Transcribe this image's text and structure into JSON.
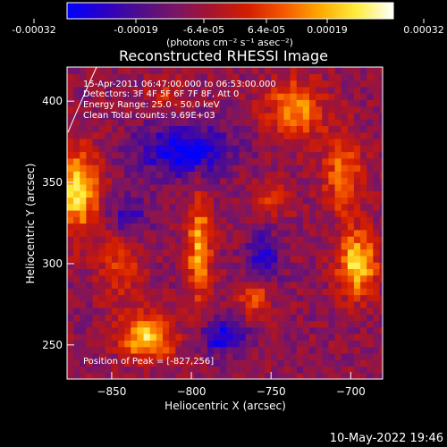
{
  "colorbar": {
    "ticks": [
      "-0.00032",
      "-0.00019",
      "-6.4e-05",
      "6.4e-05",
      "0.00019",
      "0.00032"
    ],
    "unit_label": "(photons cm⁻² s⁻¹ asec⁻²)",
    "colors": [
      "#0000ff",
      "#2a00c8",
      "#4f0d8c",
      "#7a1566",
      "#a8142b",
      "#d41e00",
      "#f55a00",
      "#ffaa00",
      "#ffee40",
      "#ffffff"
    ]
  },
  "chart_data": {
    "type": "heatmap",
    "title": "Reconstructed RHESSI Image",
    "xlabel": "Heliocentric X (arcsec)",
    "ylabel": "Heliocentric Y (arcsec)",
    "xlim": [
      -878,
      -680
    ],
    "ylim": [
      229,
      421
    ],
    "xticks": [
      -850,
      -800,
      -750,
      -700
    ],
    "yticks": [
      250,
      300,
      350,
      400
    ],
    "value_range": [
      -0.00032,
      0.00032
    ],
    "annotations": [
      "15-Apr-2011 06:47:00.000 to 06:53:00.000",
      "Detectors: 3F 4F 5F 6F 7F 8F, Att 0",
      "Energy Range: 25.0 - 50.0 keV",
      "Clean     Total counts: 9.69E+03"
    ],
    "peak_label": "Position of Peak = [-827,256]",
    "sources": [
      {
        "x": -872,
        "y": 345,
        "rx": 14,
        "ry": 26,
        "value": 0.00032
      },
      {
        "x": -828,
        "y": 255,
        "rx": 16,
        "ry": 14,
        "value": 0.00032
      },
      {
        "x": -795,
        "y": 310,
        "rx": 8,
        "ry": 32,
        "value": 0.00026
      },
      {
        "x": -696,
        "y": 300,
        "rx": 12,
        "ry": 20,
        "value": 0.00032
      },
      {
        "x": -735,
        "y": 395,
        "rx": 18,
        "ry": 18,
        "value": 0.00024
      },
      {
        "x": -705,
        "y": 355,
        "rx": 12,
        "ry": 24,
        "value": 0.0002
      },
      {
        "x": -760,
        "y": 280,
        "rx": 10,
        "ry": 12,
        "value": 0.00017
      },
      {
        "x": -845,
        "y": 300,
        "rx": 14,
        "ry": 22,
        "value": 0.00014
      },
      {
        "x": -750,
        "y": 340,
        "rx": 12,
        "ry": 12,
        "value": 0.00012
      },
      {
        "x": -815,
        "y": 405,
        "rx": 12,
        "ry": 14,
        "value": 0.0001
      },
      {
        "x": -805,
        "y": 370,
        "rx": 28,
        "ry": 16,
        "value": -0.00024
      },
      {
        "x": -780,
        "y": 255,
        "rx": 14,
        "ry": 10,
        "value": -0.00022
      },
      {
        "x": -755,
        "y": 305,
        "rx": 10,
        "ry": 16,
        "value": -0.00018
      },
      {
        "x": -840,
        "y": 330,
        "rx": 14,
        "ry": 14,
        "value": -0.00014
      }
    ]
  },
  "footer": {
    "date": "10-May-2022 19:46"
  }
}
